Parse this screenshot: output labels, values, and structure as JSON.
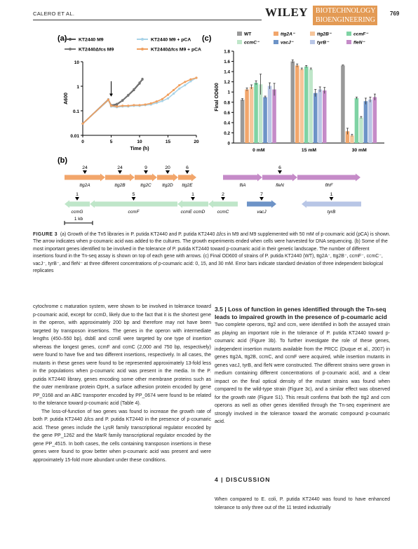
{
  "header": {
    "authors": "CALERO ET AL.",
    "publisher": "WILEY",
    "journal_line1": "BIOTECHNOLOGY",
    "journal_line2": "BIOENGINEERING",
    "page_number": "769"
  },
  "figure": {
    "panel_a_label": "(a)",
    "panel_b_label": "(b)",
    "panel_c_label": "(c)",
    "scale_bar_label": "1 kb",
    "row1_genes": [
      {
        "name": "ttg2A",
        "count": "24"
      },
      {
        "name": "ttg2B",
        "count": "24"
      },
      {
        "name": "ttg2C",
        "count": "9"
      },
      {
        "name": "ttg2D",
        "count": "20"
      },
      {
        "name": "ttg2E",
        "count": "6"
      },
      {
        "name": "fliA",
        "count": ""
      },
      {
        "name": "fleN",
        "count": "6"
      },
      {
        "name": "flhF",
        "count": ""
      }
    ],
    "row2_genes": [
      {
        "name": "ccmG",
        "count": "1"
      },
      {
        "name": "ccmF",
        "count": "5"
      },
      {
        "name": "ccmE ccmD",
        "count": "1"
      },
      {
        "name": "ccmC",
        "count": "2"
      },
      {
        "name": "vacJ",
        "count": "7"
      },
      {
        "name": "tyrB",
        "count": "1"
      }
    ]
  },
  "chart_data": [
    {
      "type": "line",
      "panel": "(a)",
      "xlabel": "Time (h)",
      "ylabel": "A600",
      "xlim": [
        0,
        20
      ],
      "ylim": [
        0.01,
        10
      ],
      "yscale": "log",
      "xticks": [
        "0",
        "5",
        "10",
        "15",
        "20"
      ],
      "yticks": [
        "0.01",
        "0.1",
        "1",
        "10"
      ],
      "legend": [
        "KT2440 M9",
        "KT2440 M9 + pCA",
        "KT2440Δfcs M9",
        "KT2440Δfcs M9 + pCA"
      ],
      "series": [
        {
          "name": "KT2440 M9",
          "color": "#555555",
          "x": [
            0,
            4.5,
            5,
            6,
            7,
            8,
            9,
            10,
            10.5
          ],
          "y": [
            0.03,
            0.27,
            0.16,
            0.18,
            0.26,
            0.42,
            0.7,
            1.3,
            1.9
          ]
        },
        {
          "name": "KT2440 M9 + pCA",
          "color": "#a8d3e8",
          "x": [
            0,
            4.5,
            5,
            6,
            7,
            8,
            9,
            10,
            11,
            12,
            13,
            14,
            15,
            16,
            17,
            18,
            19,
            20
          ],
          "y": [
            0.03,
            0.27,
            0.15,
            0.14,
            0.15,
            0.15,
            0.16,
            0.16,
            0.17,
            0.18,
            0.21,
            0.25,
            0.32,
            0.5,
            0.8,
            1.1,
            1.6,
            2.2
          ]
        },
        {
          "name": "KT2440Δfcs M9",
          "color": "#777777",
          "x": [
            0,
            4.5,
            5,
            6,
            7,
            8,
            9,
            10,
            10.5
          ],
          "y": [
            0.03,
            0.29,
            0.17,
            0.19,
            0.27,
            0.44,
            0.75,
            1.4,
            2.0
          ]
        },
        {
          "name": "KT2440Δfcs M9 + pCA",
          "color": "#f0a060",
          "x": [
            0,
            4.5,
            5,
            6,
            7,
            8,
            9,
            10,
            11,
            12,
            13,
            14,
            15,
            16,
            17,
            18,
            19,
            20
          ],
          "y": [
            0.03,
            0.28,
            0.16,
            0.15,
            0.16,
            0.16,
            0.17,
            0.17,
            0.18,
            0.2,
            0.24,
            0.3,
            0.45,
            0.7,
            1.1,
            1.5,
            1.9,
            2.2
          ]
        }
      ],
      "annotation": "arrow at 5 h (p-coumaric acid addition)"
    },
    {
      "type": "bar",
      "panel": "(c)",
      "ylabel": "Final OD600",
      "ylim": [
        0,
        1.8
      ],
      "yticks": [
        "0",
        "0.2",
        "0.4",
        "0.6",
        "0.8",
        "1",
        "1.2",
        "1.4",
        "1.6",
        "1.8"
      ],
      "categories": [
        "0 mM",
        "15 mM",
        "30 mM"
      ],
      "legend_placement": "top",
      "series": [
        {
          "name": "WT",
          "color": "#999999",
          "values": [
            0.85,
            1.6,
            1.52
          ],
          "errors": [
            0.02,
            0.03,
            0.01
          ]
        },
        {
          "name": "ttg2A⁻",
          "color": "#f2a66b",
          "values": [
            1.05,
            1.52,
            0.23
          ],
          "errors": [
            0.03,
            0.03,
            0.06
          ]
        },
        {
          "name": "ttg2B⁻",
          "color": "#f6c59a",
          "values": [
            1.1,
            1.45,
            0.15
          ],
          "errors": [
            0.04,
            0.02,
            0.02
          ]
        },
        {
          "name": "ccmF⁻",
          "color": "#7fd3a4",
          "values": [
            1.18,
            1.5,
            0.88
          ],
          "errors": [
            0.04,
            0.02,
            0.02
          ]
        },
        {
          "name": "ccmC⁻",
          "color": "#bfe6c9",
          "values": [
            1.15,
            1.45,
            0.5
          ],
          "errors": [
            0.2,
            0.02,
            0.02
          ]
        },
        {
          "name": "vacJ⁻",
          "color": "#6d93c7",
          "values": [
            0.9,
            0.98,
            0.82
          ],
          "errors": [
            0.02,
            0.07,
            0.06
          ]
        },
        {
          "name": "tyrB⁻",
          "color": "#b8c6e6",
          "values": [
            1.12,
            1.05,
            0.85
          ],
          "errors": [
            0.06,
            0.05,
            0.05
          ]
        },
        {
          "name": "fleN⁻",
          "color": "#c58bc8",
          "values": [
            1.05,
            1.03,
            0.9
          ],
          "errors": [
            0.12,
            0.06,
            0.06
          ]
        }
      ]
    }
  ],
  "caption": {
    "label": "FIGURE 3",
    "text": "(a) Growth of the Tn5 libraries in P. putida KT2440 and P. putida KT2440 Δfcs in M9 and M9 supplemented with 50 mM of p-coumaric acid (pCA) is shown. The arrow indicates when p-coumaric acid was added to the cultures. The growth experiments ended when cells were harvested for DNA sequencing. (b) Some of the most important genes identified to be involved in the tolerance of P. putida KT2440 toward p-coumaric acid in their genetic landscape. The number of different insertions found in the Tn-seq assay is shown on top of each gene with arrows. (c) Final OD600 of strains of P. putida KT2440 (WT), ttg2A⁻, ttg2B⁻, ccmF⁻, ccmC⁻, vacJ⁻, tyrB⁻, and fleN⁻ at three different concentrations of p-coumaric acid: 0, 15, and 30 mM. Error bars indicate standard deviation of three independent biological replicates"
  },
  "left_column": [
    "cytochrome c maturation system, were shown to be involved in tolerance toward p-coumaric acid, except for ccmD, likely due to the fact that it is the shortest gene in the operon, with approximately 200 bp and therefore may not have been targeted by transposon insertions. The genes in the operon with intermediate lengths (450–550 bp), dsbE and ccmE were targeted by one type of insertion whereas the longest genes, ccmF and ccmC (2,000 and 750 bp, respectively) were found to have five and two different insertions, respectively. In all cases, the mutants in these genes were found to be represented approximately 13-fold less in the populations when p-coumaric acid was present in the media. In the P. putida KT2440 library, genes encoding some other membrane proteins such as the outer membrane protein OprH, a surface adhesion protein encoded by gene PP_0168 and an ABC transporter encoded by PP_0674 were found to be related to the tolerance toward p-coumaric acid (Table 4).",
    "The loss-of-function of two genes was found to increase the growth rate of both P. putida KT2440 Δfcs and P. putida KT2440 in the presence of p-coumaric acid. These genes include the LysR family transcriptional regulator encoded by the gene PP_1262 and the MarR family transcriptional regulator encoded by the gene PP_4515. In both cases, the cells containing transposon insertions in these genes were found to grow better when p-coumaric acid was present and were approximately 15-fold more abundant under these conditions."
  ],
  "right_column": {
    "section_heading": "3.5 | Loss of function in genes identified through the Tn-seq leads to impaired growth in the presence of p-coumaric acid",
    "paragraph": "Two complete operons, ttg2 and ccm, were identified in both the assayed strain as playing an important role in the tolerance of P. putida KT2440 toward p-coumaric acid (Figure 3b). To further investigate the role of these genes, independent insertion mutants available from the PRCC (Duque et al., 2007) in genes ttg2A, ttg2B, ccmC, and ccmF were acquired, while insertion mutants in genes vacJ, tyrB, and fleN were constructed. The different strains were grown in medium containing different concentrations of p-coumaric acid, and a clear impact on the final optical density of the mutant strains was found when compared to the wild-type strain (Figure 3c), and a similar effect was observed for the growth rate (Figure S1). This result confirms that both the ttg2 and ccm operons as well as other genes identified through the Tn-seq experiment are strongly involved in the tolerance toward the aromatic compound p-coumaric acid.",
    "discussion_heading": "4 | DISCUSSION",
    "discussion_text": "When compared to E. coli, P. putida KT2440 was found to have enhanced tolerance to only three out of the 11 tested industrially"
  }
}
